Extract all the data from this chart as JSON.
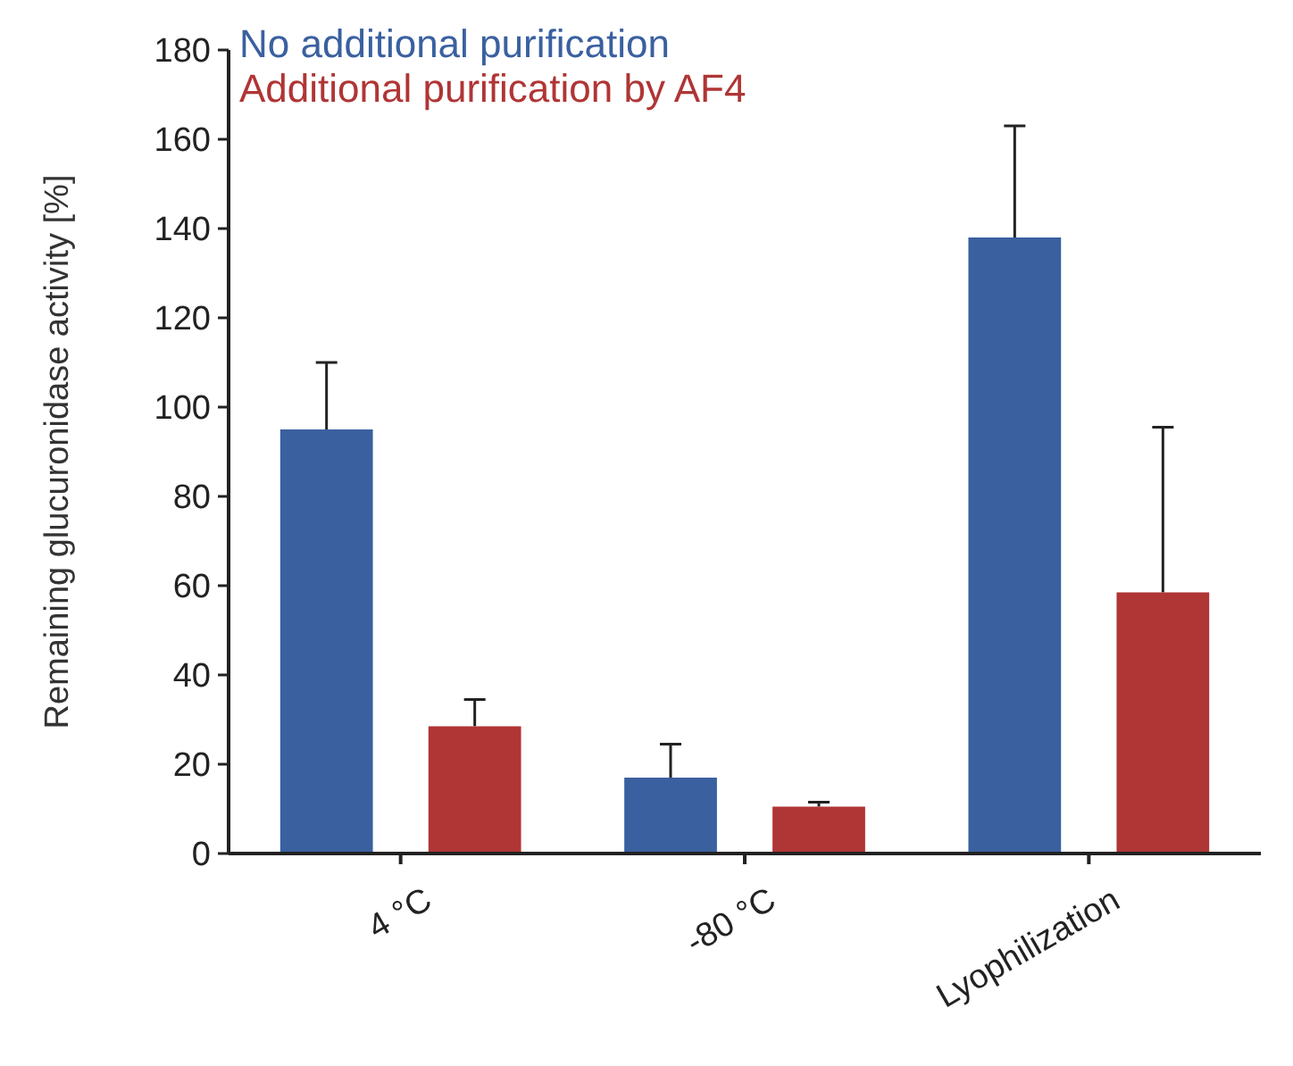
{
  "chart_data": {
    "type": "bar",
    "ylabel": "Remaining glucuronidase activity [%]",
    "categories": [
      "4 °C",
      "-80 °C",
      "Lyophilization"
    ],
    "series": [
      {
        "name": "No additional purification",
        "color": "#3a60a0",
        "values": [
          95,
          17,
          138
        ],
        "errors": [
          15,
          7.5,
          25
        ]
      },
      {
        "name": "Additional purification by AF4",
        "color": "#b03535",
        "values": [
          28.5,
          10.5,
          58.5
        ],
        "errors": [
          6,
          1,
          37
        ]
      }
    ],
    "ylim": [
      0,
      180
    ],
    "yticks": [
      0,
      20,
      40,
      60,
      80,
      100,
      120,
      140,
      160,
      180
    ],
    "legend": "top left"
  }
}
